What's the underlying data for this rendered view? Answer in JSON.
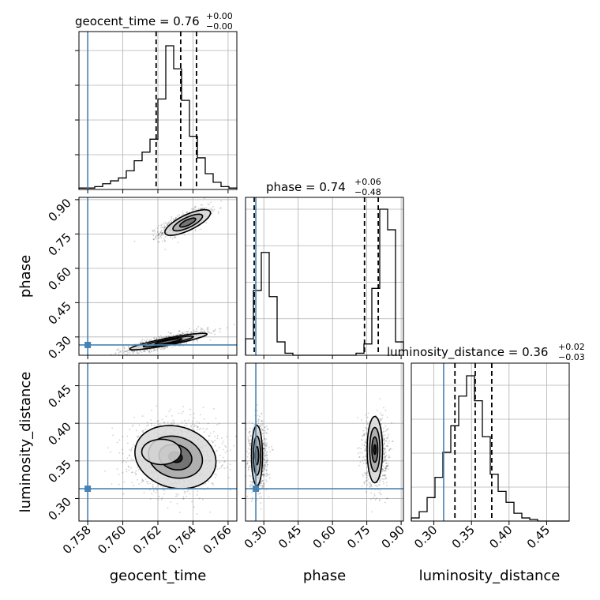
{
  "chart_data": {
    "type": "corner",
    "parameters": [
      "geocent_time",
      "phase",
      "luminosity_distance"
    ],
    "truths": {
      "geocent_time": 0.758,
      "phase": 0.265,
      "luminosity_distance": 0.313
    },
    "truth_color": "#4682b4",
    "titles": [
      {
        "name": "geocent_time",
        "value": "0.76",
        "plus": "+0.00",
        "minus": "−0.00"
      },
      {
        "name": "phase",
        "value": "0.74",
        "plus": "+0.06",
        "minus": "−0.48"
      },
      {
        "name": "luminosity_distance",
        "value": "0.36",
        "plus": "+0.02",
        "minus": "−0.03"
      }
    ],
    "ranges": {
      "geocent_time": [
        0.7575,
        0.7665
      ],
      "phase": [
        0.22,
        0.91
      ],
      "luminosity_distance": [
        0.27,
        0.48
      ]
    },
    "ticks": {
      "geocent_time": [
        "0.758",
        "0.760",
        "0.762",
        "0.764",
        "0.766"
      ],
      "phase_x": [
        "0.30",
        "0.45",
        "0.60",
        "0.75",
        "0.90"
      ],
      "phase_y": [
        "0.30",
        "0.45",
        "0.60",
        "0.75",
        "0.90"
      ],
      "luminosity_distance_x": [
        "0.30",
        "0.35",
        "0.40",
        "0.45"
      ],
      "luminosity_distance_y": [
        "0.30",
        "0.35",
        "0.40",
        "0.45"
      ]
    },
    "quantiles": {
      "geocent_time": [
        0.7619,
        0.7633,
        0.7642
      ],
      "phase": [
        0.258,
        0.74,
        0.8
      ],
      "luminosity_distance": [
        0.328,
        0.355,
        0.377
      ]
    },
    "hist_geocent_time": {
      "edges_start": 0.7575,
      "bin_width": 0.00045,
      "counts": [
        0.01,
        0.01,
        0.02,
        0.04,
        0.06,
        0.08,
        0.13,
        0.2,
        0.26,
        0.35,
        0.63,
        1.0,
        0.84,
        0.62,
        0.37,
        0.22,
        0.11,
        0.05,
        0.02,
        0.01
      ]
    },
    "hist_phase": {
      "edges_start": 0.22,
      "bin_width": 0.0345,
      "counts": [
        0.16,
        0.63,
        1.0,
        0.57,
        0.13,
        0.02,
        0,
        0,
        0,
        0,
        0,
        0,
        0,
        0,
        0.02,
        0.11,
        0.65,
        1.42,
        1.22,
        0.13
      ]
    },
    "hist_luminosity_distance": {
      "edges_start": 0.27,
      "bin_width": 0.0105,
      "counts": [
        0.02,
        0.06,
        0.15,
        0.28,
        0.44,
        0.61,
        0.8,
        0.93,
        0.77,
        0.54,
        0.3,
        0.19,
        0.12,
        0.05,
        0.02,
        0.01,
        0,
        0,
        0,
        0
      ]
    },
    "xlabel": [
      "geocent_time",
      "phase",
      "luminosity_distance"
    ],
    "ylabel": [
      "phase",
      "luminosity_distance"
    ]
  }
}
